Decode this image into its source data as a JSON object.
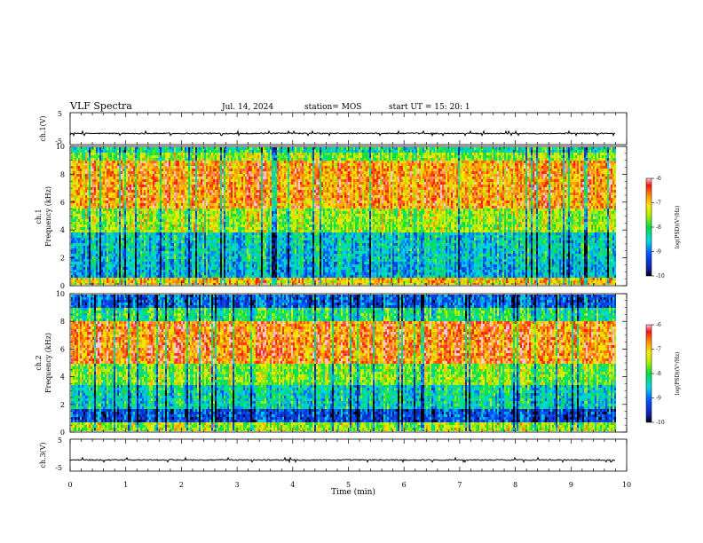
{
  "header": {
    "title": "VLF Spectra",
    "date": "Jul. 14, 2024",
    "station": "station= MOS",
    "start_ut": "start UT =  15: 20: 1"
  },
  "chart_data": [
    {
      "id": "ch1_waveform",
      "type": "line",
      "ylabel": "ch.1(V)",
      "ylim": [
        -5,
        5
      ],
      "yticks": [
        "5",
        "-5"
      ],
      "baseline": -1.5,
      "xlim": [
        0,
        10
      ]
    },
    {
      "id": "ch1_spectrogram",
      "type": "heatmap",
      "ylabel": "ch.1\nFrequency (kHz)",
      "ylabel_lines": [
        "ch.1",
        "Frequency (kHz)"
      ],
      "ylim": [
        0,
        10
      ],
      "yticks": [
        "0",
        "2",
        "4",
        "6",
        "8",
        "10"
      ],
      "xlim": [
        0,
        9.8
      ],
      "colorbar": {
        "label": "log(PSD)(V²/Hz)",
        "range": [
          -10,
          -6
        ],
        "ticks": [
          "-6",
          "-7",
          "-8",
          "-9",
          "-10"
        ]
      }
    },
    {
      "id": "ch2_spectrogram",
      "type": "heatmap",
      "ylabel": "ch.2\nFrequency (kHz)",
      "ylabel_lines": [
        "ch.2",
        "Frequency (kHz)"
      ],
      "ylim": [
        0,
        10
      ],
      "yticks": [
        "0",
        "2",
        "4",
        "6",
        "8",
        "10"
      ],
      "xlim": [
        0,
        9.8
      ],
      "colorbar": {
        "label": "log(PSD)(V²/Hz)",
        "range": [
          -10,
          -6
        ],
        "ticks": [
          "-6",
          "-7",
          "-8",
          "-9",
          "-10"
        ]
      }
    },
    {
      "id": "ch3_waveform",
      "type": "line",
      "ylabel": "ch.3(V)",
      "ylim": [
        -5,
        5
      ],
      "yticks": [
        "5",
        "-5"
      ],
      "baseline": -1.5,
      "xlim": [
        0,
        10
      ],
      "xlabel": "Time (min)",
      "xticks": [
        "0",
        "1",
        "2",
        "3",
        "4",
        "5",
        "6",
        "7",
        "8",
        "9",
        "10"
      ]
    }
  ]
}
